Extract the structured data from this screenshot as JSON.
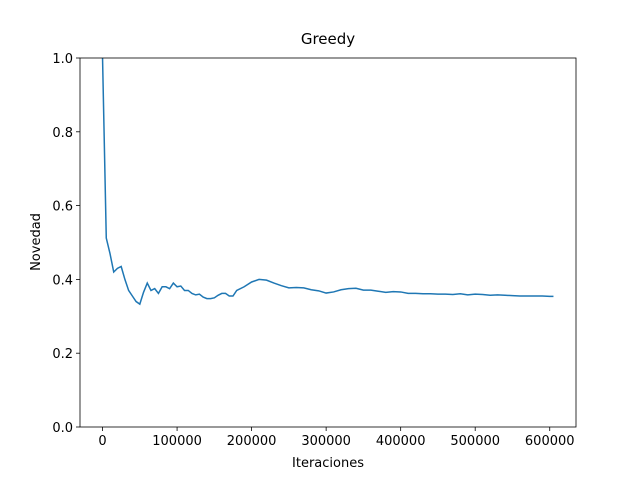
{
  "chart_data": {
    "type": "line",
    "title": "Greedy",
    "x_label": "Iteraciones",
    "y_label": "Novedad",
    "x": [
      0,
      5000,
      10000,
      15000,
      20000,
      25000,
      30000,
      35000,
      40000,
      45000,
      50000,
      55000,
      60000,
      65000,
      70000,
      75000,
      80000,
      85000,
      90000,
      95000,
      100000,
      105000,
      110000,
      115000,
      120000,
      125000,
      130000,
      135000,
      140000,
      145000,
      150000,
      155000,
      160000,
      165000,
      170000,
      175000,
      180000,
      190000,
      200000,
      210000,
      220000,
      230000,
      240000,
      250000,
      260000,
      270000,
      280000,
      290000,
      300000,
      310000,
      320000,
      330000,
      340000,
      350000,
      360000,
      370000,
      380000,
      390000,
      400000,
      410000,
      420000,
      430000,
      440000,
      450000,
      460000,
      470000,
      480000,
      490000,
      500000,
      510000,
      520000,
      530000,
      540000,
      550000,
      560000,
      570000,
      580000,
      590000,
      600000,
      605000
    ],
    "series": [
      {
        "name": "Novedad",
        "color": "#1f77b4",
        "values": [
          1.0,
          0.512,
          0.47,
          0.42,
          0.43,
          0.435,
          0.4,
          0.37,
          0.355,
          0.34,
          0.333,
          0.365,
          0.39,
          0.37,
          0.375,
          0.362,
          0.38,
          0.38,
          0.375,
          0.39,
          0.38,
          0.382,
          0.37,
          0.37,
          0.362,
          0.358,
          0.36,
          0.352,
          0.348,
          0.348,
          0.35,
          0.357,
          0.362,
          0.362,
          0.355,
          0.355,
          0.37,
          0.38,
          0.393,
          0.4,
          0.398,
          0.39,
          0.383,
          0.377,
          0.378,
          0.377,
          0.372,
          0.369,
          0.363,
          0.366,
          0.372,
          0.375,
          0.376,
          0.371,
          0.371,
          0.368,
          0.365,
          0.367,
          0.366,
          0.362,
          0.362,
          0.361,
          0.361,
          0.36,
          0.36,
          0.359,
          0.361,
          0.358,
          0.36,
          0.359,
          0.357,
          0.358,
          0.357,
          0.356,
          0.355,
          0.355,
          0.355,
          0.355,
          0.354,
          0.354
        ]
      }
    ],
    "xlim": [
      -30250,
      635250
    ],
    "ylim": [
      0,
      1
    ],
    "xticks": [
      0,
      100000,
      200000,
      300000,
      400000,
      500000,
      600000
    ],
    "yticks": [
      {
        "value": 0,
        "label": "0.0"
      },
      0.2,
      0.4,
      0.6,
      0.8,
      {
        "value": 1,
        "label": "1.0"
      }
    ]
  }
}
